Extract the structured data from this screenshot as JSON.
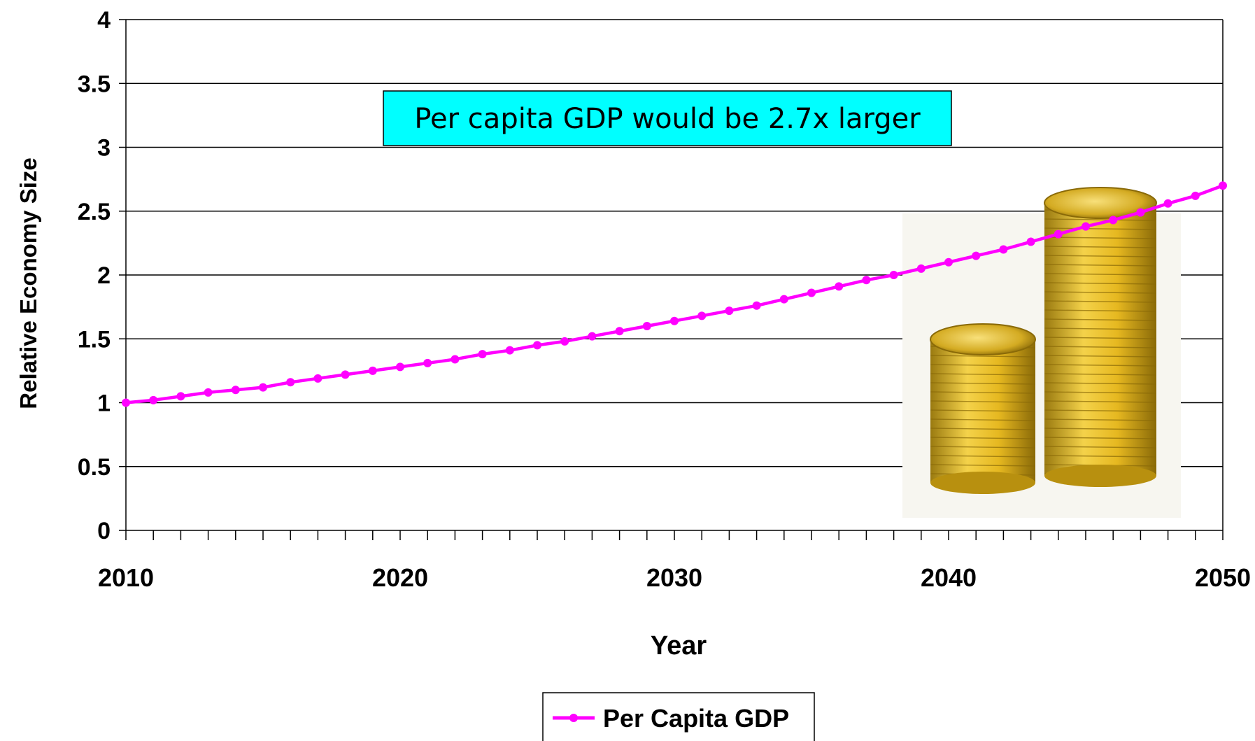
{
  "chart_data": {
    "type": "line",
    "title": "",
    "xlabel": "Year",
    "ylabel": "Relative Economy Size",
    "xlim": [
      2010,
      2050
    ],
    "ylim": [
      0,
      4
    ],
    "x_ticks": [
      2010,
      2020,
      2030,
      2040,
      2050
    ],
    "y_ticks": [
      "0",
      "0.5",
      "1",
      "1.5",
      "2",
      "2.5",
      "3",
      "3.5",
      "4"
    ],
    "grid": "horizontal",
    "legend_position": "bottom-center",
    "annotation": "Per capita GDP would be 2.7x larger",
    "series": [
      {
        "name": "Per Capita GDP",
        "color": "#ff00ff",
        "x": [
          2010,
          2011,
          2012,
          2013,
          2014,
          2015,
          2016,
          2017,
          2018,
          2019,
          2020,
          2021,
          2022,
          2023,
          2024,
          2025,
          2026,
          2027,
          2028,
          2029,
          2030,
          2031,
          2032,
          2033,
          2034,
          2035,
          2036,
          2037,
          2038,
          2039,
          2040,
          2041,
          2042,
          2043,
          2044,
          2045,
          2046,
          2047,
          2048,
          2049,
          2050
        ],
        "values": [
          1.0,
          1.02,
          1.05,
          1.08,
          1.1,
          1.12,
          1.16,
          1.19,
          1.22,
          1.25,
          1.28,
          1.31,
          1.34,
          1.38,
          1.41,
          1.45,
          1.48,
          1.52,
          1.56,
          1.6,
          1.64,
          1.68,
          1.72,
          1.76,
          1.81,
          1.86,
          1.91,
          1.96,
          2.0,
          2.05,
          2.1,
          2.15,
          2.2,
          2.26,
          2.32,
          2.38,
          2.43,
          2.49,
          2.56,
          2.62,
          2.7
        ]
      }
    ]
  },
  "colors": {
    "series": "#ff00ff",
    "callout_bg": "#00ffff",
    "grid": "#000000"
  },
  "decorations": {
    "image": "gold-coin-stacks"
  }
}
